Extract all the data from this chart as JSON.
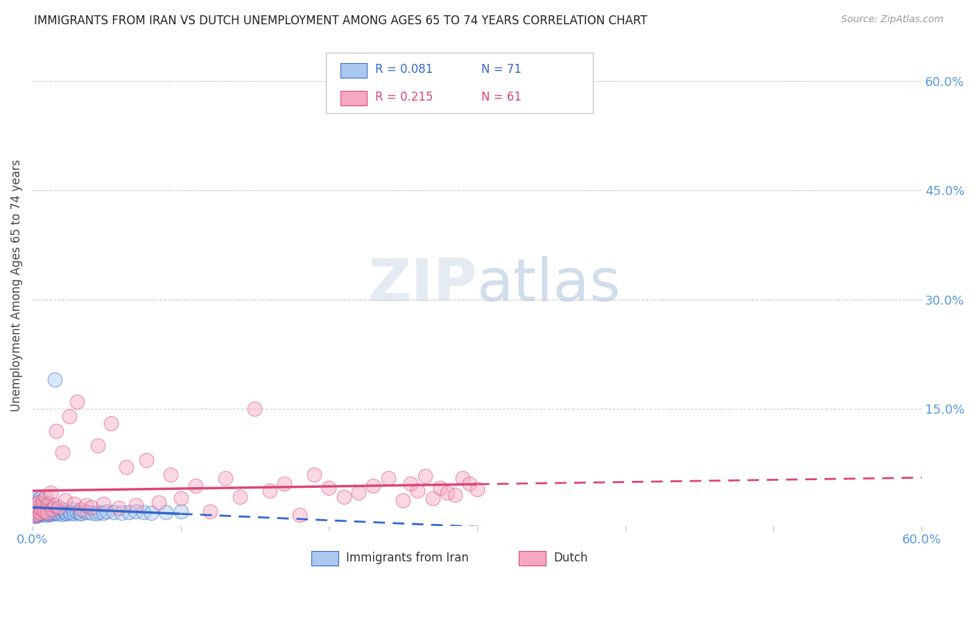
{
  "title": "IMMIGRANTS FROM IRAN VS DUTCH UNEMPLOYMENT AMONG AGES 65 TO 74 YEARS CORRELATION CHART",
  "source": "Source: ZipAtlas.com",
  "ylabel": "Unemployment Among Ages 65 to 74 years",
  "xmin": 0.0,
  "xmax": 0.6,
  "ymin": -0.01,
  "ymax": 0.65,
  "series1_name": "Immigrants from Iran",
  "series2_name": "Dutch",
  "series1_color": "#aac8f0",
  "series2_color": "#f5a8c0",
  "trendline1_color": "#3366cc",
  "trendline2_color": "#dd4477",
  "R1": 0.081,
  "N1": 71,
  "R2": 0.215,
  "N2": 61,
  "background_color": "#ffffff",
  "grid_color": "#cccccc",
  "title_color": "#222222",
  "source_color": "#999999",
  "axis_label_color": "#5599dd",
  "right_yticks": [
    0.15,
    0.3,
    0.45,
    0.6
  ],
  "right_yticklabels": [
    "15.0%",
    "30.0%",
    "45.0%",
    "60.0%"
  ],
  "iran_x": [
    0.001,
    0.001,
    0.002,
    0.002,
    0.002,
    0.002,
    0.003,
    0.003,
    0.003,
    0.003,
    0.003,
    0.004,
    0.004,
    0.004,
    0.004,
    0.005,
    0.005,
    0.005,
    0.005,
    0.006,
    0.006,
    0.006,
    0.007,
    0.007,
    0.007,
    0.008,
    0.008,
    0.009,
    0.009,
    0.01,
    0.01,
    0.01,
    0.011,
    0.011,
    0.012,
    0.012,
    0.013,
    0.013,
    0.014,
    0.015,
    0.015,
    0.016,
    0.017,
    0.018,
    0.019,
    0.02,
    0.021,
    0.022,
    0.023,
    0.025,
    0.026,
    0.027,
    0.028,
    0.03,
    0.032,
    0.033,
    0.035,
    0.037,
    0.04,
    0.043,
    0.045,
    0.048,
    0.05,
    0.055,
    0.06,
    0.065,
    0.07,
    0.075,
    0.08,
    0.09,
    0.1
  ],
  "iran_y": [
    0.005,
    0.012,
    0.003,
    0.008,
    0.015,
    0.02,
    0.004,
    0.01,
    0.018,
    0.025,
    0.007,
    0.006,
    0.013,
    0.022,
    0.03,
    0.005,
    0.011,
    0.016,
    0.028,
    0.008,
    0.014,
    0.019,
    0.007,
    0.012,
    0.017,
    0.006,
    0.015,
    0.008,
    0.013,
    0.005,
    0.01,
    0.018,
    0.007,
    0.012,
    0.006,
    0.011,
    0.008,
    0.014,
    0.007,
    0.009,
    0.19,
    0.008,
    0.013,
    0.007,
    0.01,
    0.006,
    0.011,
    0.008,
    0.007,
    0.009,
    0.008,
    0.012,
    0.007,
    0.009,
    0.008,
    0.007,
    0.01,
    0.009,
    0.008,
    0.007,
    0.009,
    0.008,
    0.01,
    0.009,
    0.008,
    0.009,
    0.01,
    0.009,
    0.008,
    0.009,
    0.01
  ],
  "dutch_x": [
    0.001,
    0.002,
    0.002,
    0.003,
    0.004,
    0.004,
    0.005,
    0.006,
    0.007,
    0.008,
    0.009,
    0.01,
    0.011,
    0.012,
    0.013,
    0.015,
    0.016,
    0.018,
    0.02,
    0.022,
    0.025,
    0.028,
    0.03,
    0.033,
    0.036,
    0.04,
    0.044,
    0.048,
    0.053,
    0.058,
    0.063,
    0.07,
    0.077,
    0.085,
    0.093,
    0.1,
    0.11,
    0.12,
    0.13,
    0.14,
    0.15,
    0.16,
    0.17,
    0.18,
    0.19,
    0.2,
    0.21,
    0.22,
    0.23,
    0.24,
    0.25,
    0.255,
    0.26,
    0.265,
    0.27,
    0.275,
    0.28,
    0.285,
    0.29,
    0.295,
    0.3
  ],
  "dutch_y": [
    0.005,
    0.01,
    0.018,
    0.006,
    0.015,
    0.022,
    0.008,
    0.013,
    0.025,
    0.01,
    0.03,
    0.008,
    0.02,
    0.035,
    0.012,
    0.018,
    0.12,
    0.015,
    0.09,
    0.025,
    0.14,
    0.02,
    0.16,
    0.012,
    0.018,
    0.015,
    0.1,
    0.02,
    0.13,
    0.014,
    0.07,
    0.018,
    0.08,
    0.022,
    0.06,
    0.028,
    0.045,
    0.01,
    0.055,
    0.03,
    0.15,
    0.038,
    0.048,
    0.005,
    0.06,
    0.042,
    0.03,
    0.035,
    0.045,
    0.055,
    0.025,
    0.048,
    0.038,
    0.058,
    0.028,
    0.042,
    0.035,
    0.032,
    0.055,
    0.048,
    0.04
  ]
}
